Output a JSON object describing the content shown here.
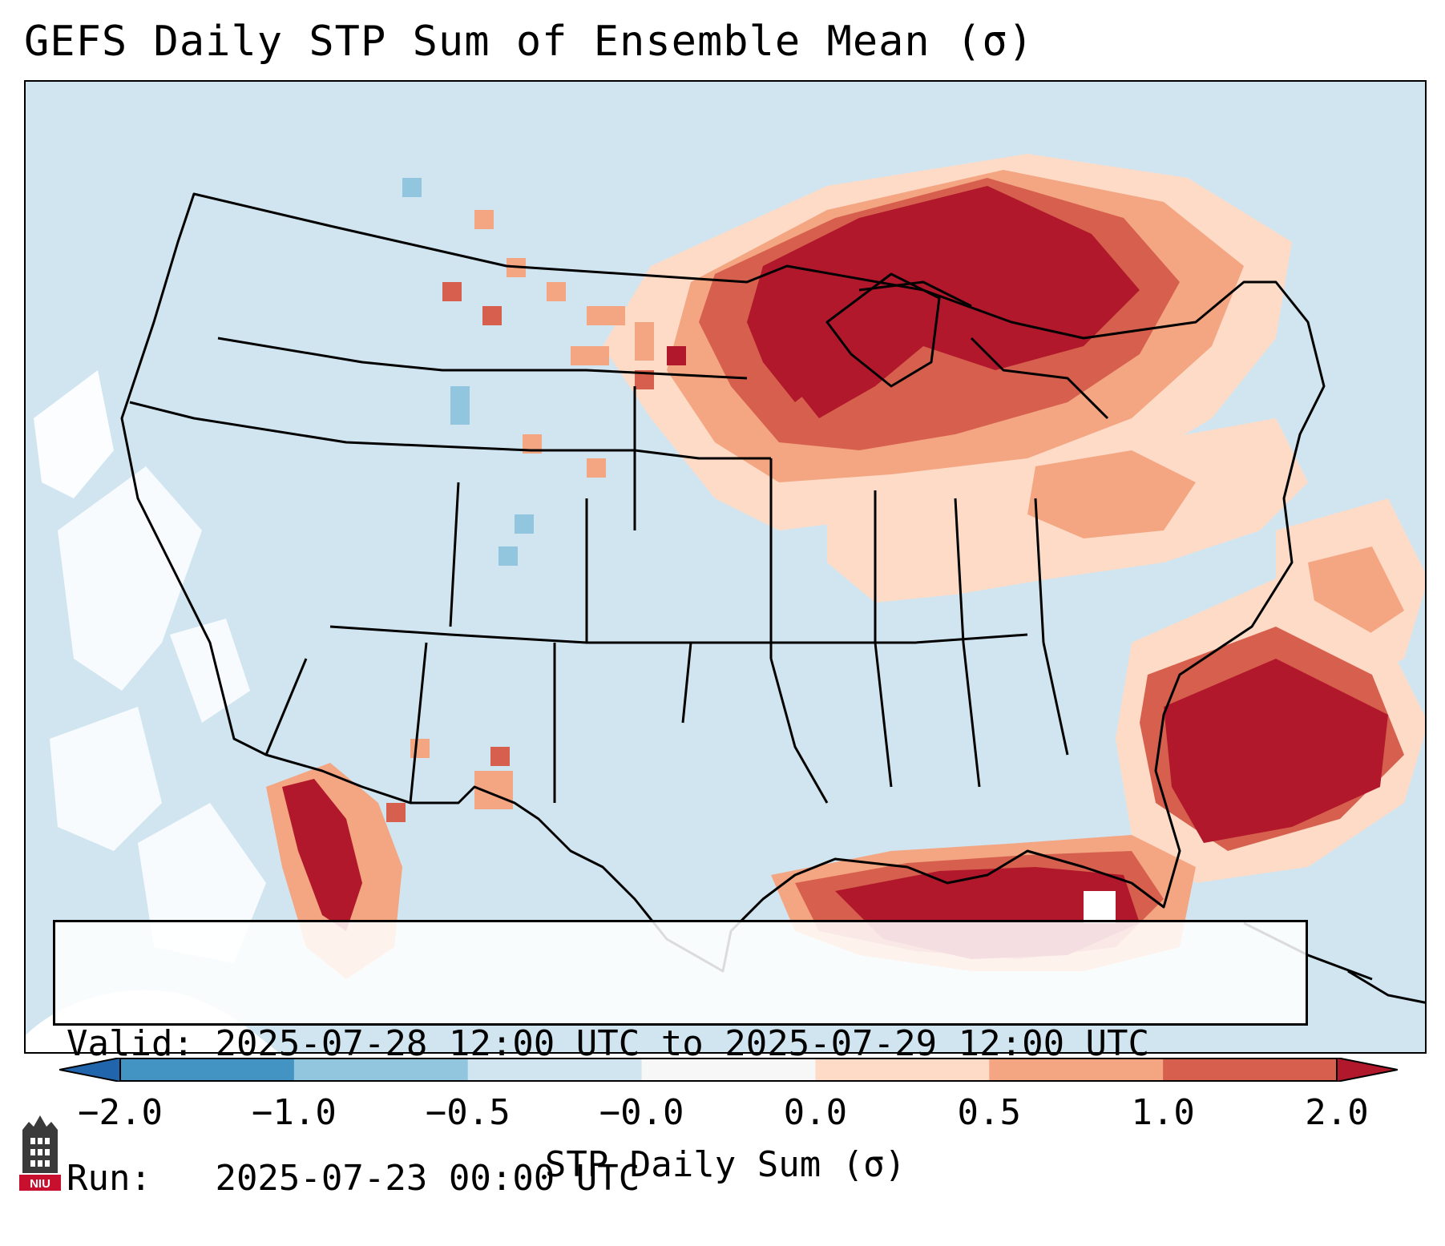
{
  "title": "GEFS Daily STP Sum of Ensemble Mean (σ)",
  "info": {
    "valid_label": "Valid:",
    "valid_value": "2025-07-28 12:00 UTC to 2025-07-29 12:00 UTC",
    "run_label": "Run:",
    "run_value": "2025-07-23 00:00 UTC"
  },
  "colorbar": {
    "label": "STP Daily Sum (σ)",
    "ticks": [
      "−2.0",
      "−1.0",
      "−0.5",
      "−0.0",
      "0.0",
      "0.5",
      "1.0",
      "2.0"
    ],
    "colors": [
      "#4393c3",
      "#92c5de",
      "#d1e5f0",
      "#f7f7f7",
      "#fddbc7",
      "#f4a582",
      "#d6604d"
    ],
    "under_color": "#2166ac",
    "over_color": "#b2182b"
  },
  "map": {
    "background_color": "#d1e5f0",
    "legend_palette": {
      "strong": "#b2182b",
      "high": "#d6604d",
      "mid": "#f4a582",
      "low": "#fddbc7",
      "neutral": "#ffffff",
      "negative": "#92c5de"
    },
    "regions": [
      {
        "name": "great-lakes-upper-midwest",
        "level": "strong"
      },
      {
        "name": "ontario-quebec",
        "level": "strong"
      },
      {
        "name": "southeast-atlantic-offshore",
        "level": "strong"
      },
      {
        "name": "gulf-of-mexico",
        "level": "strong"
      },
      {
        "name": "gulf-of-california",
        "level": "strong"
      },
      {
        "name": "northern-plains",
        "level": "mid"
      },
      {
        "name": "ohio-valley-northeast",
        "level": "low"
      },
      {
        "name": "west-coast-offshore",
        "level": "neutral"
      }
    ]
  },
  "logo": {
    "text": "NIU",
    "color": "#c8102e"
  }
}
